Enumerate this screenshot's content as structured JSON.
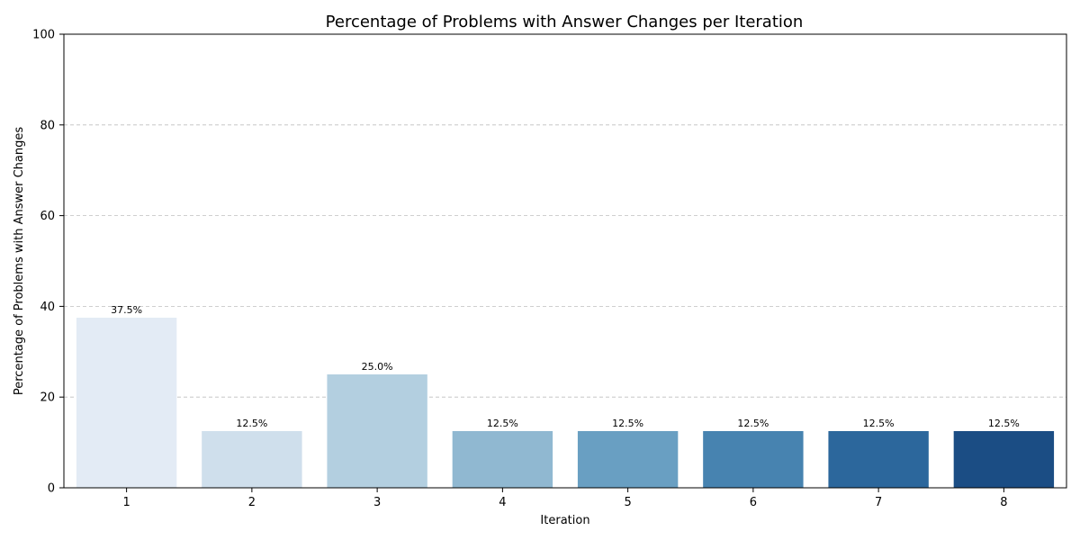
{
  "chart_data": {
    "type": "bar",
    "title": "Percentage of Problems with Answer Changes per Iteration",
    "xlabel": "Iteration",
    "ylabel": "Percentage of Problems with Answer Changes",
    "categories": [
      "1",
      "2",
      "3",
      "4",
      "5",
      "6",
      "7",
      "8"
    ],
    "values": [
      37.5,
      12.5,
      25.0,
      12.5,
      12.5,
      12.5,
      12.5,
      12.5
    ],
    "data_labels": [
      "37.5%",
      "12.5%",
      "25.0%",
      "12.5%",
      "12.5%",
      "12.5%",
      "12.5%",
      "12.5%"
    ],
    "ylim": [
      0,
      100
    ],
    "yticks": [
      "0",
      "20",
      "40",
      "60",
      "80",
      "100"
    ],
    "ytick_values": [
      0,
      20,
      40,
      60,
      80,
      100
    ],
    "grid": "y-axis dashed",
    "legend": "none",
    "bar_colors": [
      "#e3ebf5",
      "#cfdfec",
      "#b3cfe0",
      "#90b8d1",
      "#699fc2",
      "#4783b0",
      "#2c679c",
      "#1b4d84"
    ]
  }
}
